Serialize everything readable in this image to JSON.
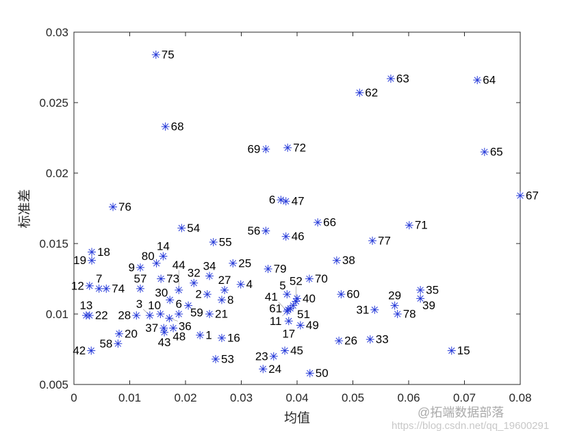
{
  "chart_data": {
    "type": "scatter",
    "xlabel": "均值",
    "ylabel": "标准差",
    "xlim": [
      0,
      0.08
    ],
    "ylim": [
      0.005,
      0.03
    ],
    "xticks": [
      "0",
      "0.01",
      "0.02",
      "0.03",
      "0.04",
      "0.05",
      "0.06",
      "0.07",
      "0.08"
    ],
    "yticks": [
      "0.005",
      "0.01",
      "0.015",
      "0.02",
      "0.025",
      "0.03"
    ],
    "marker": "asterisk",
    "marker_color": "#2438d8",
    "grid": false,
    "points": [
      {
        "label": "75",
        "x": 0.0147,
        "y": 0.0284
      },
      {
        "label": "63",
        "x": 0.0568,
        "y": 0.0267
      },
      {
        "label": "64",
        "x": 0.0723,
        "y": 0.0266
      },
      {
        "label": "62",
        "x": 0.0512,
        "y": 0.0257
      },
      {
        "label": "68",
        "x": 0.0164,
        "y": 0.0233
      },
      {
        "label": "69",
        "x": 0.0344,
        "y": 0.0217
      },
      {
        "label": "72",
        "x": 0.0383,
        "y": 0.0218
      },
      {
        "label": "65",
        "x": 0.0736,
        "y": 0.0215
      },
      {
        "label": "67",
        "x": 0.08,
        "y": 0.0184
      },
      {
        "label": "76",
        "x": 0.007,
        "y": 0.0176
      },
      {
        "label": "6",
        "x": 0.0371,
        "y": 0.0181
      },
      {
        "label": "47",
        "x": 0.038,
        "y": 0.018
      },
      {
        "label": "66",
        "x": 0.0437,
        "y": 0.0165
      },
      {
        "label": "71",
        "x": 0.0601,
        "y": 0.0163
      },
      {
        "label": "54",
        "x": 0.0193,
        "y": 0.0161
      },
      {
        "label": "56",
        "x": 0.0344,
        "y": 0.0159
      },
      {
        "label": "46",
        "x": 0.038,
        "y": 0.0155
      },
      {
        "label": "55",
        "x": 0.025,
        "y": 0.0151
      },
      {
        "label": "77",
        "x": 0.0535,
        "y": 0.0152
      },
      {
        "label": "18",
        "x": 0.0032,
        "y": 0.0144
      },
      {
        "label": "19",
        "x": 0.0032,
        "y": 0.0138
      },
      {
        "label": "14",
        "x": 0.016,
        "y": 0.0141
      },
      {
        "label": "80",
        "x": 0.0148,
        "y": 0.0136
      },
      {
        "label": "9",
        "x": 0.0119,
        "y": 0.0133
      },
      {
        "label": "25",
        "x": 0.0285,
        "y": 0.0136
      },
      {
        "label": "38",
        "x": 0.0471,
        "y": 0.0138
      },
      {
        "label": "79",
        "x": 0.0348,
        "y": 0.0132
      },
      {
        "label": "70",
        "x": 0.0422,
        "y": 0.0125
      },
      {
        "label": "73",
        "x": 0.0156,
        "y": 0.0125
      },
      {
        "label": "34",
        "x": 0.0243,
        "y": 0.0127
      },
      {
        "label": "32",
        "x": 0.0215,
        "y": 0.0122
      },
      {
        "label": "4",
        "x": 0.0299,
        "y": 0.0121
      },
      {
        "label": "12",
        "x": 0.0028,
        "y": 0.012
      },
      {
        "label": "7",
        "x": 0.0045,
        "y": 0.0118
      },
      {
        "label": "74",
        "x": 0.0058,
        "y": 0.0118
      },
      {
        "label": "57",
        "x": 0.0119,
        "y": 0.0118
      },
      {
        "label": "44",
        "x": 0.0188,
        "y": 0.0117
      },
      {
        "label": "27",
        "x": 0.027,
        "y": 0.0117
      },
      {
        "label": "2",
        "x": 0.0239,
        "y": 0.0114
      },
      {
        "label": "35",
        "x": 0.0621,
        "y": 0.0117
      },
      {
        "label": "39",
        "x": 0.0621,
        "y": 0.0111
      },
      {
        "label": "5",
        "x": 0.0382,
        "y": 0.0114
      },
      {
        "label": "60",
        "x": 0.0479,
        "y": 0.0114
      },
      {
        "label": "8",
        "x": 0.0265,
        "y": 0.011
      },
      {
        "label": "30",
        "x": 0.0172,
        "y": 0.011
      },
      {
        "label": "40",
        "x": 0.04,
        "y": 0.0111
      },
      {
        "label": "52",
        "x": 0.0398,
        "y": 0.0109
      },
      {
        "label": "51",
        "x": 0.0393,
        "y": 0.0106
      },
      {
        "label": "61",
        "x": 0.0388,
        "y": 0.0104
      },
      {
        "label": "11",
        "x": 0.0384,
        "y": 0.0103
      },
      {
        "label": "41",
        "x": 0.0382,
        "y": 0.0102
      },
      {
        "label": "29",
        "x": 0.0575,
        "y": 0.0106
      },
      {
        "label": "59",
        "x": 0.0205,
        "y": 0.0106
      },
      {
        "label": "31",
        "x": 0.0539,
        "y": 0.0103
      },
      {
        "label": "78",
        "x": 0.058,
        "y": 0.01
      },
      {
        "label": "10",
        "x": 0.0155,
        "y": 0.01
      },
      {
        "label": "21",
        "x": 0.0243,
        "y": 0.01
      },
      {
        "label": "28",
        "x": 0.0112,
        "y": 0.0099
      },
      {
        "label": "3",
        "x": 0.0136,
        "y": 0.0099
      },
      {
        "label": "36",
        "x": 0.0171,
        "y": 0.0097
      },
      {
        "label": "6",
        "x": 0.0188,
        "y": 0.01
      },
      {
        "label": "37",
        "x": 0.0161,
        "y": 0.009
      },
      {
        "label": "48",
        "x": 0.0178,
        "y": 0.009
      },
      {
        "label": "43",
        "x": 0.0162,
        "y": 0.0087
      },
      {
        "label": "13",
        "x": 0.0022,
        "y": 0.0099
      },
      {
        "label": "22",
        "x": 0.0028,
        "y": 0.0099
      },
      {
        "label": "20",
        "x": 0.0081,
        "y": 0.0086
      },
      {
        "label": "58",
        "x": 0.0079,
        "y": 0.0079
      },
      {
        "label": "42",
        "x": 0.0031,
        "y": 0.0074
      },
      {
        "label": "1",
        "x": 0.0226,
        "y": 0.0085
      },
      {
        "label": "16",
        "x": 0.0265,
        "y": 0.0083
      },
      {
        "label": "53",
        "x": 0.0254,
        "y": 0.0068
      },
      {
        "label": "17",
        "x": 0.0385,
        "y": 0.0095
      },
      {
        "label": "49",
        "x": 0.0406,
        "y": 0.0092
      },
      {
        "label": "26",
        "x": 0.0475,
        "y": 0.0081
      },
      {
        "label": "33",
        "x": 0.0531,
        "y": 0.0082
      },
      {
        "label": "45",
        "x": 0.0378,
        "y": 0.0074
      },
      {
        "label": "23",
        "x": 0.0358,
        "y": 0.007
      },
      {
        "label": "24",
        "x": 0.0339,
        "y": 0.0061
      },
      {
        "label": "50",
        "x": 0.0423,
        "y": 0.0058
      },
      {
        "label": "15",
        "x": 0.0677,
        "y": 0.0074
      }
    ]
  },
  "watermark": {
    "url": "https://blog.csdn.net/qq_19600291",
    "brand": "@拓端数据部落"
  }
}
